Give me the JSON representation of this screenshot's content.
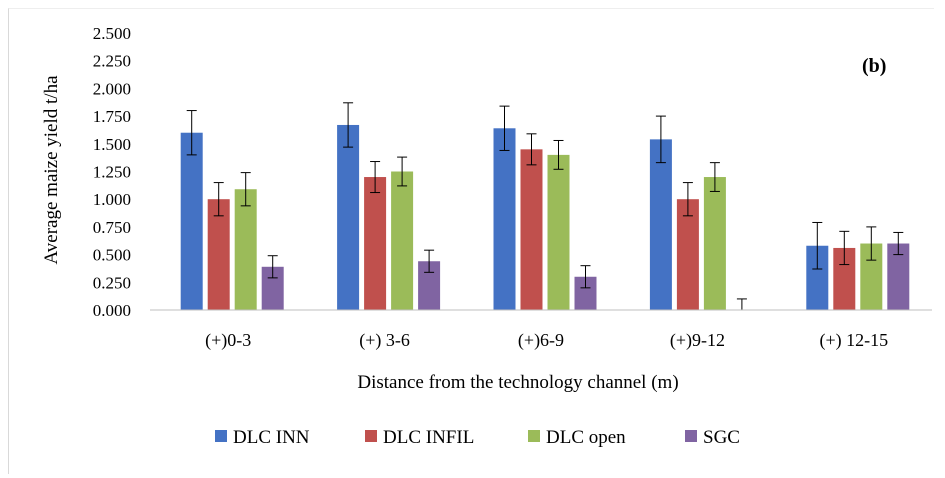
{
  "chart_data": {
    "type": "bar",
    "panel_label": "(b)",
    "categories": [
      "(+)0-3",
      "(+) 3-6",
      "(+)6-9",
      "(+)9-12",
      "(+) 12-15"
    ],
    "xlabel": "Distance from the technology channel (m)",
    "ylabel": "Average maize yield t/ha",
    "ylim": [
      0,
      2.5
    ],
    "yticks": [
      "0.000",
      "0.250",
      "0.500",
      "0.750",
      "1.000",
      "1.250",
      "1.500",
      "1.750",
      "2.000",
      "2.250",
      "2.500"
    ],
    "grid": false,
    "legend_position": "bottom",
    "series": [
      {
        "name": "DLC INN",
        "color": "#4472c4",
        "values": [
          1.6,
          1.67,
          1.64,
          1.54,
          0.58
        ],
        "errors": [
          0.2,
          0.2,
          0.2,
          0.21,
          0.21
        ]
      },
      {
        "name": "DLC INFIL",
        "color": "#c0504d",
        "values": [
          1.0,
          1.2,
          1.45,
          1.0,
          0.56
        ],
        "errors": [
          0.15,
          0.14,
          0.14,
          0.15,
          0.15
        ]
      },
      {
        "name": "DLC open",
        "color": "#9bbb59",
        "values": [
          1.09,
          1.25,
          1.4,
          1.2,
          0.6
        ],
        "errors": [
          0.15,
          0.13,
          0.13,
          0.13,
          0.15
        ]
      },
      {
        "name": "SGC",
        "color": "#8064a2",
        "values": [
          0.39,
          0.44,
          0.3,
          0.0,
          0.6
        ],
        "errors": [
          0.1,
          0.1,
          0.1,
          0.1,
          0.1
        ]
      }
    ]
  }
}
